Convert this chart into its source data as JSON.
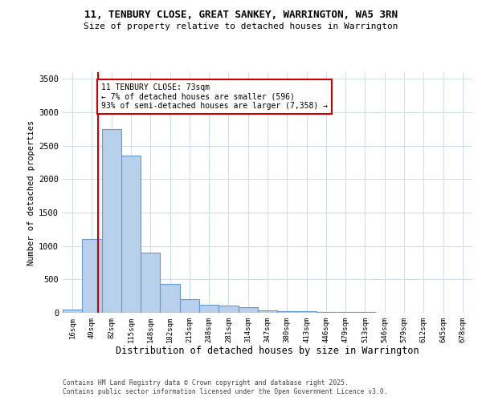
{
  "title_line1": "11, TENBURY CLOSE, GREAT SANKEY, WARRINGTON, WA5 3RN",
  "title_line2": "Size of property relative to detached houses in Warrington",
  "xlabel": "Distribution of detached houses by size in Warrington",
  "ylabel": "Number of detached properties",
  "bar_labels": [
    "16sqm",
    "49sqm",
    "82sqm",
    "115sqm",
    "148sqm",
    "182sqm",
    "215sqm",
    "248sqm",
    "281sqm",
    "314sqm",
    "347sqm",
    "380sqm",
    "413sqm",
    "446sqm",
    "479sqm",
    "513sqm",
    "546sqm",
    "579sqm",
    "612sqm",
    "645sqm",
    "678sqm"
  ],
  "bar_values": [
    50,
    1100,
    2750,
    2350,
    900,
    430,
    200,
    120,
    110,
    80,
    40,
    30,
    25,
    15,
    10,
    8,
    5,
    4,
    3,
    2,
    2
  ],
  "bar_color": "#b8d0eb",
  "bar_edge_color": "#6699cc",
  "annotation_box_text": "11 TENBURY CLOSE: 73sqm\n← 7% of detached houses are smaller (596)\n93% of semi-detached houses are larger (7,358) →",
  "annotation_box_color": "#ffffff",
  "annotation_box_edge_color": "#cc0000",
  "red_line_x": 1.33,
  "ylim": [
    0,
    3600
  ],
  "yticks": [
    0,
    500,
    1000,
    1500,
    2000,
    2500,
    3000,
    3500
  ],
  "background_color": "#ffffff",
  "grid_color": "#ccddee",
  "footer_line1": "Contains HM Land Registry data © Crown copyright and database right 2025.",
  "footer_line2": "Contains public sector information licensed under the Open Government Licence v3.0."
}
